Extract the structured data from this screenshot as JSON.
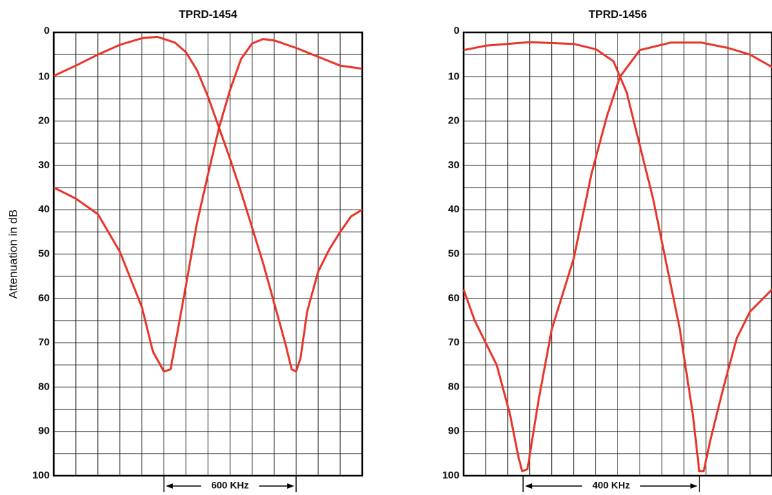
{
  "chart_data": [
    {
      "type": "line",
      "title": "TPRD-1454",
      "ylabel": "Attenuation in dB",
      "xlim": [
        0,
        1400
      ],
      "xticks": [
        0,
        100,
        200,
        300,
        400,
        500,
        600,
        700,
        800,
        900,
        1000,
        1100,
        1200,
        1300,
        1400
      ],
      "ylim": [
        0,
        100
      ],
      "y_reversed": true,
      "yticks": [
        0,
        10,
        20,
        30,
        40,
        50,
        60,
        70,
        80,
        90,
        100
      ],
      "yminor": [
        5,
        15,
        25,
        35,
        45,
        55,
        65,
        75,
        85,
        95
      ],
      "grid": true,
      "annotation": {
        "text": "600 KHz",
        "x": [
          500,
          1100
        ]
      },
      "series": [
        {
          "color": "#e8352b",
          "x": [
            0,
            100,
            200,
            300,
            400,
            470,
            550,
            600,
            650,
            700,
            750,
            800,
            850,
            900,
            950,
            1000,
            1050,
            1080,
            1100,
            1120,
            1150,
            1200,
            1250,
            1300,
            1350,
            1400
          ],
          "values": [
            9.8,
            7.5,
            5,
            2.8,
            1.3,
            1.0,
            2.3,
            4.5,
            8.5,
            14.5,
            21.5,
            28.5,
            36,
            44,
            52,
            61,
            70,
            76,
            76.5,
            73.5,
            63,
            54,
            49,
            45,
            41.5,
            40
          ]
        },
        {
          "color": "#e8352b",
          "x": [
            0,
            100,
            200,
            300,
            400,
            450,
            500,
            530,
            560,
            600,
            650,
            700,
            750,
            800,
            850,
            900,
            950,
            1000,
            1100,
            1200,
            1300,
            1400
          ],
          "values": [
            35,
            37.5,
            41,
            49.5,
            62,
            72,
            76.5,
            76,
            68,
            57,
            43,
            32,
            21.5,
            13,
            6,
            2.5,
            1.5,
            1.8,
            3.5,
            5.5,
            7.5,
            8.2
          ]
        }
      ]
    },
    {
      "type": "line",
      "title": "TPRD-1456",
      "xlim": [
        0,
        700
      ],
      "xticks": [
        0,
        50,
        100,
        150,
        200,
        250,
        300,
        350,
        400,
        450,
        500,
        550,
        600,
        650,
        700
      ],
      "ylim": [
        0,
        100
      ],
      "y_reversed": true,
      "yticks": [
        0,
        10,
        20,
        30,
        40,
        50,
        60,
        70,
        80,
        90,
        100
      ],
      "yminor": [
        5,
        15,
        25,
        35,
        45,
        55,
        65,
        75,
        85,
        95
      ],
      "grid": true,
      "annotation": {
        "text": "400 KHz",
        "x": [
          135,
          535
        ]
      },
      "series": [
        {
          "color": "#e8352b",
          "x": [
            0,
            50,
            150,
            250,
            300,
            340,
            370,
            400,
            430,
            460,
            490,
            520,
            535,
            545,
            560,
            590,
            620,
            650,
            700
          ],
          "values": [
            4,
            3,
            2.2,
            2.6,
            3.8,
            6.5,
            13.5,
            25.5,
            37.5,
            52,
            66.5,
            86,
            99,
            99,
            92,
            80,
            69,
            63,
            58
          ]
        },
        {
          "color": "#e8352b",
          "x": [
            0,
            25,
            75,
            105,
            125,
            133,
            145,
            170,
            200,
            250,
            290,
            325,
            355,
            400,
            470,
            540,
            600,
            650,
            700
          ],
          "values": [
            58,
            65,
            75,
            86,
            96,
            99,
            98.5,
            83,
            67,
            51,
            32,
            19,
            10,
            4,
            2.3,
            2.3,
            3.5,
            5,
            7.8
          ]
        }
      ]
    }
  ]
}
